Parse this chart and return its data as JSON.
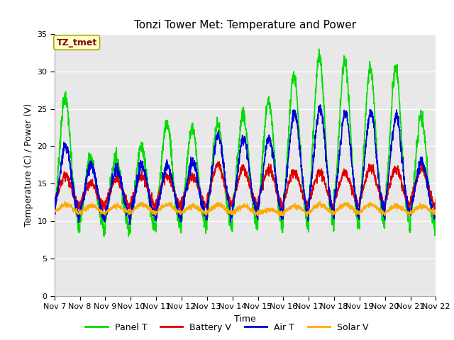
{
  "title": "Tonzi Tower Met: Temperature and Power",
  "xlabel": "Time",
  "ylabel": "Temperature (C) / Power (V)",
  "annotation": "TZ_tmet",
  "ylim": [
    0,
    35
  ],
  "yticks": [
    0,
    5,
    10,
    15,
    20,
    25,
    30,
    35
  ],
  "x_labels": [
    "Nov 7",
    "Nov 8",
    "Nov 9",
    "Nov 10",
    "Nov 11",
    "Nov 12",
    "Nov 13",
    "Nov 14",
    "Nov 15",
    "Nov 16",
    "Nov 17",
    "Nov 18",
    "Nov 19",
    "Nov 20",
    "Nov 21",
    "Nov 22"
  ],
  "series": {
    "Panel T": {
      "color": "#00dd00",
      "linewidth": 1.2
    },
    "Battery V": {
      "color": "#dd0000",
      "linewidth": 1.2
    },
    "Air T": {
      "color": "#0000dd",
      "linewidth": 1.2
    },
    "Solar V": {
      "color": "#ffaa00",
      "linewidth": 1.2
    }
  },
  "plot_bg": "#e8e8e8",
  "fig_bg": "#ffffff",
  "grid_color": "#ffffff",
  "title_fontsize": 11,
  "axis_fontsize": 9,
  "tick_fontsize": 8,
  "legend_fontsize": 9,
  "annotation_bg": "#ffffcc",
  "annotation_fg": "#880000",
  "annotation_border": "#aaa800"
}
